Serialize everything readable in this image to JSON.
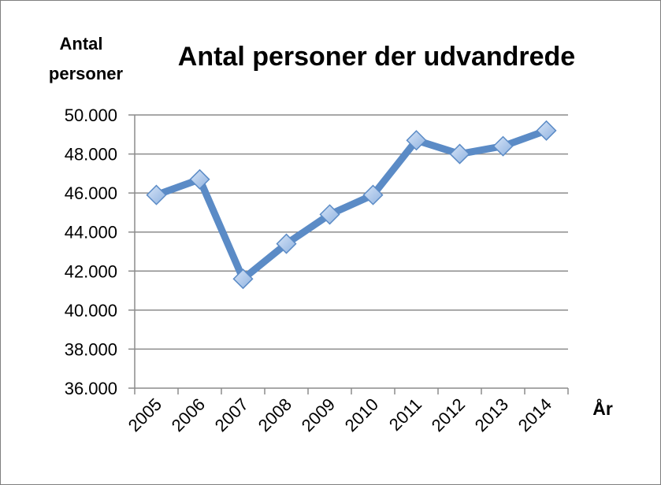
{
  "chart_data": {
    "type": "line",
    "title": "Antal personer der udvandrede",
    "ylabel_lines": [
      "Antal",
      "personer"
    ],
    "xlabel": "År",
    "categories": [
      "2005",
      "2006",
      "2007",
      "2008",
      "2009",
      "2010",
      "2011",
      "2012",
      "2013",
      "2014"
    ],
    "series": [
      {
        "values": [
          45900,
          46700,
          41600,
          43400,
          44900,
          45900,
          48700,
          48000,
          48400,
          49200
        ]
      }
    ],
    "ylim": [
      36000,
      50000
    ],
    "y_ticks": [
      36000,
      38000,
      40000,
      42000,
      44000,
      46000,
      48000,
      50000
    ],
    "y_tick_labels": [
      "36.000",
      "38.000",
      "40.000",
      "42.000",
      "44.000",
      "46.000",
      "48.000",
      "50.000"
    ],
    "grid": true,
    "legend": "none",
    "colors": {
      "line": "#5b8bc6",
      "marker_fill": "#a9c5ec",
      "marker_stroke": "#5b8bc6",
      "grid": "#8c8c8c"
    }
  }
}
